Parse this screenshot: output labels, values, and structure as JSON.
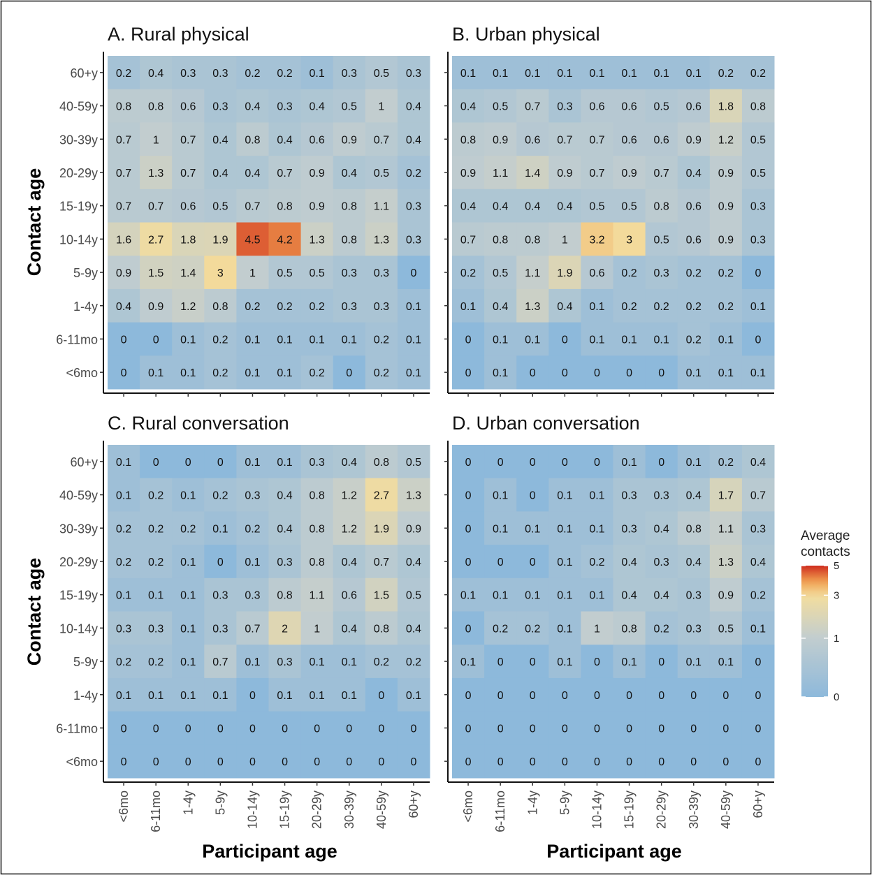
{
  "chart_data": {
    "type": "heatmap",
    "x_categories": [
      "<6mo",
      "6-11mo",
      "1-4y",
      "5-9y",
      "10-14y",
      "15-19y",
      "20-29y",
      "30-39y",
      "40-59y",
      "60+y"
    ],
    "y_categories": [
      "60+y",
      "40-59y",
      "30-39y",
      "20-29y",
      "15-19y",
      "10-14y",
      "5-9y",
      "1-4y",
      "6-11mo",
      "<6mo"
    ],
    "xlabel": "Participant age",
    "ylabel": "Contact age",
    "panels": [
      {
        "title": "A. Rural physical",
        "values": [
          [
            0.2,
            0.4,
            0.3,
            0.3,
            0.2,
            0.2,
            0.1,
            0.3,
            0.5,
            0.3
          ],
          [
            0.8,
            0.8,
            0.6,
            0.3,
            0.4,
            0.3,
            0.4,
            0.5,
            1,
            0.4
          ],
          [
            0.7,
            1,
            0.7,
            0.4,
            0.8,
            0.4,
            0.6,
            0.9,
            0.7,
            0.4
          ],
          [
            0.7,
            1.3,
            0.7,
            0.4,
            0.4,
            0.7,
            0.9,
            0.4,
            0.5,
            0.2
          ],
          [
            0.7,
            0.7,
            0.6,
            0.5,
            0.7,
            0.8,
            0.9,
            0.8,
            1.1,
            0.3
          ],
          [
            1.6,
            2.7,
            1.8,
            1.9,
            4.5,
            4.2,
            1.3,
            0.8,
            1.3,
            0.3
          ],
          [
            0.9,
            1.5,
            1.4,
            3,
            1,
            0.5,
            0.5,
            0.3,
            0.3,
            0
          ],
          [
            0.4,
            0.9,
            1.2,
            0.8,
            0.2,
            0.2,
            0.2,
            0.3,
            0.3,
            0.1
          ],
          [
            0,
            0,
            0.1,
            0.2,
            0.1,
            0.1,
            0.1,
            0.1,
            0.2,
            0.1
          ],
          [
            0,
            0.1,
            0.1,
            0.2,
            0.1,
            0.1,
            0.2,
            0,
            0.2,
            0.1
          ]
        ]
      },
      {
        "title": "B. Urban physical",
        "values": [
          [
            0.1,
            0.1,
            0.1,
            0.1,
            0.1,
            0.1,
            0.1,
            0.1,
            0.2,
            0.2
          ],
          [
            0.4,
            0.5,
            0.7,
            0.3,
            0.6,
            0.6,
            0.5,
            0.6,
            1.8,
            0.8
          ],
          [
            0.8,
            0.9,
            0.6,
            0.7,
            0.7,
            0.6,
            0.6,
            0.9,
            1.2,
            0.5
          ],
          [
            0.9,
            1.1,
            1.4,
            0.9,
            0.7,
            0.9,
            0.7,
            0.4,
            0.9,
            0.5
          ],
          [
            0.4,
            0.4,
            0.4,
            0.4,
            0.5,
            0.5,
            0.8,
            0.6,
            0.9,
            0.3
          ],
          [
            0.7,
            0.8,
            0.8,
            1,
            3.2,
            3,
            0.5,
            0.6,
            0.9,
            0.3
          ],
          [
            0.2,
            0.5,
            1.1,
            1.9,
            0.6,
            0.2,
            0.3,
            0.2,
            0.2,
            0
          ],
          [
            0.1,
            0.4,
            1.3,
            0.4,
            0.1,
            0.2,
            0.2,
            0.2,
            0.2,
            0.1
          ],
          [
            0,
            0.1,
            0.1,
            0,
            0.1,
            0.1,
            0.1,
            0.2,
            0.1,
            0
          ],
          [
            0,
            0.1,
            0,
            0,
            0,
            0,
            0,
            0.1,
            0.1,
            0.1
          ]
        ]
      },
      {
        "title": "C. Rural conversation",
        "values": [
          [
            0.1,
            0,
            0,
            0,
            0.1,
            0.1,
            0.3,
            0.4,
            0.8,
            0.5
          ],
          [
            0.1,
            0.2,
            0.1,
            0.2,
            0.3,
            0.4,
            0.8,
            1.2,
            2.7,
            1.3
          ],
          [
            0.2,
            0.2,
            0.2,
            0.1,
            0.2,
            0.4,
            0.8,
            1.2,
            1.9,
            0.9
          ],
          [
            0.2,
            0.2,
            0.1,
            0,
            0.1,
            0.3,
            0.8,
            0.4,
            0.7,
            0.4
          ],
          [
            0.1,
            0.1,
            0.1,
            0.3,
            0.3,
            0.8,
            1.1,
            0.6,
            1.5,
            0.5
          ],
          [
            0.3,
            0.3,
            0.1,
            0.3,
            0.7,
            2,
            1,
            0.4,
            0.8,
            0.4
          ],
          [
            0.2,
            0.2,
            0.1,
            0.7,
            0.1,
            0.3,
            0.1,
            0.1,
            0.2,
            0.2
          ],
          [
            0.1,
            0.1,
            0.1,
            0.1,
            0,
            0.1,
            0.1,
            0.1,
            0,
            0.1
          ],
          [
            0,
            0,
            0,
            0,
            0,
            0,
            0,
            0,
            0,
            0
          ],
          [
            0,
            0,
            0,
            0,
            0,
            0,
            0,
            0,
            0,
            0
          ]
        ]
      },
      {
        "title": "D. Urban conversation",
        "values": [
          [
            0,
            0,
            0,
            0,
            0,
            0.1,
            0,
            0.1,
            0.2,
            0.4
          ],
          [
            0,
            0.1,
            0,
            0.1,
            0.1,
            0.3,
            0.3,
            0.4,
            1.7,
            0.7
          ],
          [
            0,
            0.1,
            0.1,
            0.1,
            0.1,
            0.3,
            0.4,
            0.8,
            1.1,
            0.3
          ],
          [
            0,
            0,
            0,
            0.1,
            0.2,
            0.4,
            0.3,
            0.4,
            1.3,
            0.4
          ],
          [
            0.1,
            0.1,
            0.1,
            0.1,
            0.1,
            0.4,
            0.4,
            0.3,
            0.9,
            0.2
          ],
          [
            0,
            0.2,
            0.2,
            0.1,
            1,
            0.8,
            0.2,
            0.3,
            0.5,
            0.1
          ],
          [
            0.1,
            0,
            0,
            0.1,
            0,
            0.1,
            0,
            0.1,
            0.1,
            0
          ],
          [
            0,
            0,
            0,
            0,
            0,
            0,
            0,
            0,
            0,
            0
          ],
          [
            0,
            0,
            0,
            0,
            0,
            0,
            0,
            0,
            0,
            0
          ],
          [
            0,
            0,
            0,
            0,
            0,
            0,
            0,
            0,
            0,
            0
          ]
        ]
      }
    ],
    "legend": {
      "title_lines": [
        "Average",
        "contacts"
      ],
      "ticks": [
        0,
        1,
        3,
        5
      ],
      "range": [
        0,
        5
      ],
      "scale": "sqrt",
      "placement": "right"
    },
    "colors": {
      "low": "#8db9db",
      "mid": "#f3dd9e",
      "high": "#cf2d1f",
      "panel_background": "#8db9db"
    }
  }
}
